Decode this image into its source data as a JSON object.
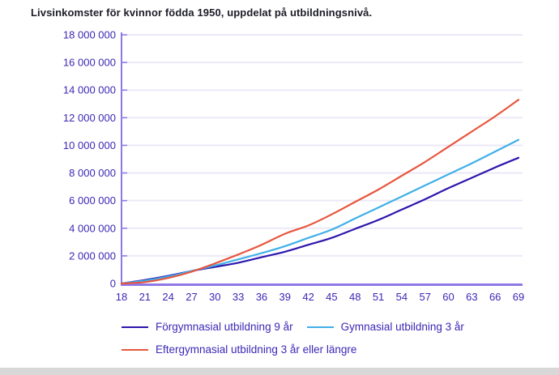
{
  "colors": {
    "axis": "#8f79e6",
    "grid": "#ebe9f7",
    "tick_text": "#3b28b5",
    "title_text": "#1c1c28"
  },
  "chart_data": {
    "type": "line",
    "title": "Livsinkomster för kvinnor födda 1950, uppdelat på utbildningsnivå.",
    "xlabel": "",
    "ylabel": "",
    "x": [
      18,
      21,
      24,
      27,
      30,
      33,
      36,
      39,
      42,
      45,
      48,
      51,
      54,
      57,
      60,
      63,
      66,
      69
    ],
    "ylim": [
      0,
      18000000
    ],
    "ytick_step": 2000000,
    "ytick_labels": [
      "0",
      "2 000 000",
      "4 000 000",
      "6 000 000",
      "8 000 000",
      "10 000 000",
      "12 000 000",
      "14 000 000",
      "16 000 000",
      "18 000 000"
    ],
    "grid": true,
    "legend_position": "bottom",
    "series": [
      {
        "id": "forgymnasial",
        "name": "Förgymnasial utbildning 9 år",
        "color": "#2d16ad",
        "values": [
          0,
          250000,
          550000,
          900000,
          1200000,
          1500000,
          1900000,
          2300000,
          2800000,
          3300000,
          3950000,
          4600000,
          5350000,
          6100000,
          6900000,
          7650000,
          8400000,
          9100000
        ]
      },
      {
        "id": "gymnasial",
        "name": "Gymnasial utbildning 3 år",
        "color": "#41b0e8",
        "values": [
          0,
          200000,
          500000,
          900000,
          1300000,
          1750000,
          2200000,
          2700000,
          3300000,
          3900000,
          4700000,
          5500000,
          6300000,
          7100000,
          7900000,
          8700000,
          9550000,
          10400000
        ]
      },
      {
        "id": "eftergymnasial",
        "name": "Eftergymnasial utbildning 3 år eller längre",
        "color": "#e8563e",
        "values": [
          0,
          100000,
          400000,
          850000,
          1450000,
          2100000,
          2800000,
          3600000,
          4200000,
          5000000,
          5900000,
          6800000,
          7800000,
          8800000,
          9900000,
          11000000,
          12100000,
          13300000
        ]
      }
    ]
  }
}
